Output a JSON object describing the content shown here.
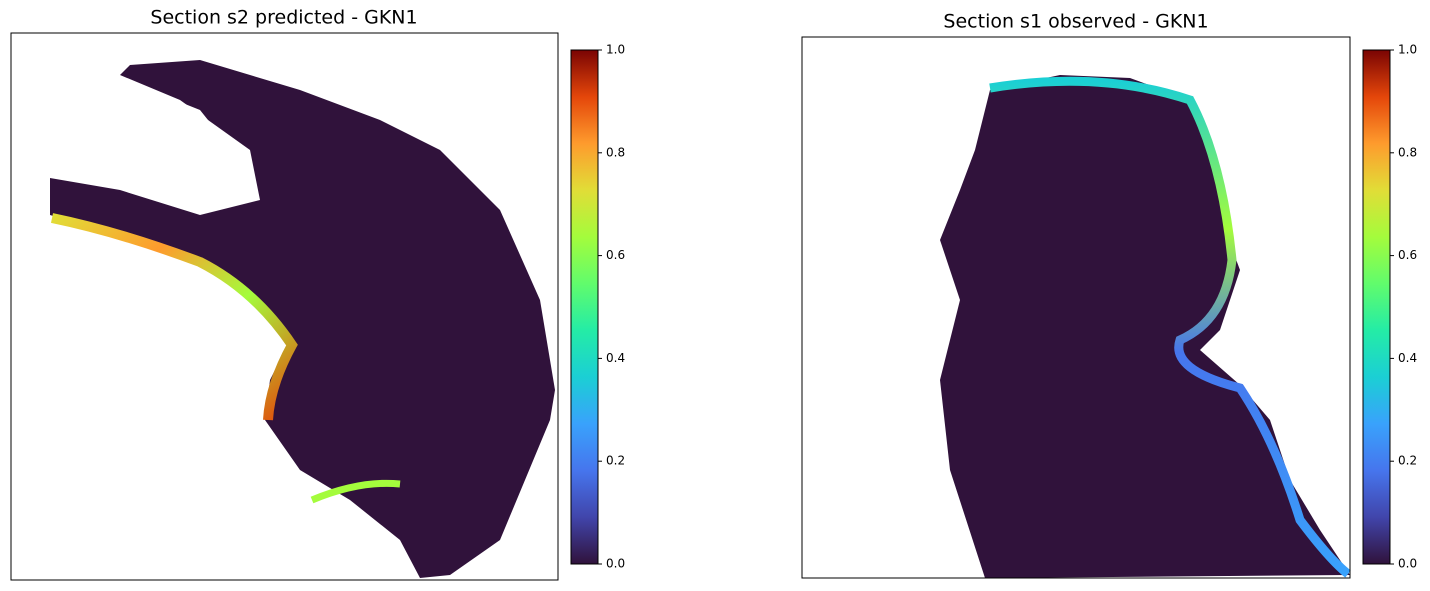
{
  "chart_data": [
    {
      "type": "image",
      "title": "Section s2 predicted - GKN1",
      "colormap": "turbo",
      "clim": [
        0,
        1
      ],
      "cticks": [
        {
          "value": 0,
          "label": "0.0"
        },
        {
          "value": 0.2,
          "label": "0.2"
        },
        {
          "value": 0.4,
          "label": "0.4"
        },
        {
          "value": 0.6,
          "label": "0.6"
        },
        {
          "value": 0.8,
          "label": "0.8"
        },
        {
          "value": 1,
          "label": "1.0"
        }
      ]
    },
    {
      "type": "image",
      "title": "Section s1 observed - GKN1",
      "colormap": "turbo",
      "clim": [
        0,
        1
      ],
      "cticks": [
        {
          "value": 0,
          "label": "0.0"
        },
        {
          "value": 0.2,
          "label": "0.2"
        },
        {
          "value": 0.4,
          "label": "0.4"
        },
        {
          "value": 0.6,
          "label": "0.6"
        },
        {
          "value": 0.8,
          "label": "0.8"
        },
        {
          "value": 1,
          "label": "1.0"
        }
      ]
    }
  ]
}
